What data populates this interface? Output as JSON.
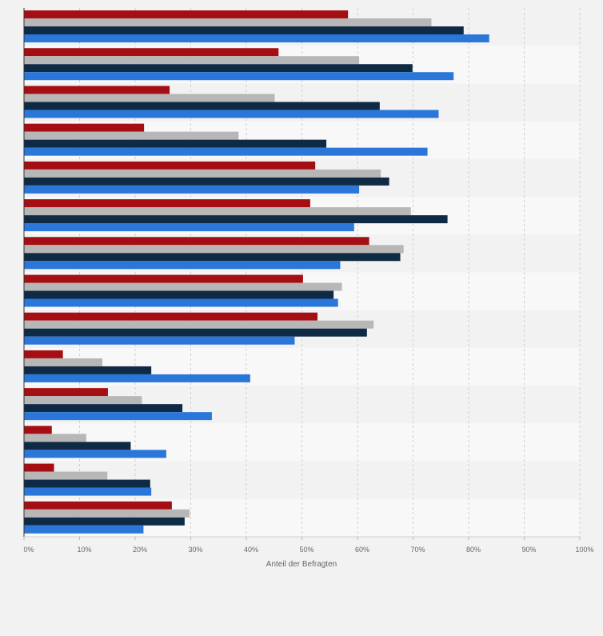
{
  "chart_data": {
    "type": "bar",
    "orientation": "horizontal",
    "xlabel": "Anteil der Befragten",
    "xlim": [
      0,
      100
    ],
    "x_ticks": [
      "0%",
      "10%",
      "20%",
      "30%",
      "40%",
      "50%",
      "60%",
      "70%",
      "80%",
      "90%",
      "100%"
    ],
    "grid": true,
    "category_count": 14,
    "series": [
      {
        "color": "#a50e12",
        "values": [
          58.3,
          45.8,
          26.2,
          21.6,
          52.4,
          51.5,
          62.1,
          50.2,
          52.8,
          7.0,
          15.1,
          5.0,
          5.4,
          26.6
        ]
      },
      {
        "color": "#b7b7b7",
        "values": [
          73.3,
          60.3,
          45.1,
          38.6,
          64.2,
          69.6,
          68.3,
          57.2,
          62.9,
          14.1,
          21.2,
          11.2,
          15.0,
          29.8
        ]
      },
      {
        "color": "#0f2a44",
        "values": [
          79.1,
          69.9,
          64.0,
          54.4,
          65.7,
          76.2,
          67.7,
          55.7,
          61.7,
          22.9,
          28.5,
          19.2,
          22.7,
          28.9
        ]
      },
      {
        "color": "#2b77d9",
        "values": [
          83.7,
          77.3,
          74.6,
          72.6,
          60.3,
          59.4,
          56.9,
          56.5,
          48.7,
          40.7,
          33.8,
          25.6,
          22.9,
          21.5
        ]
      }
    ]
  }
}
